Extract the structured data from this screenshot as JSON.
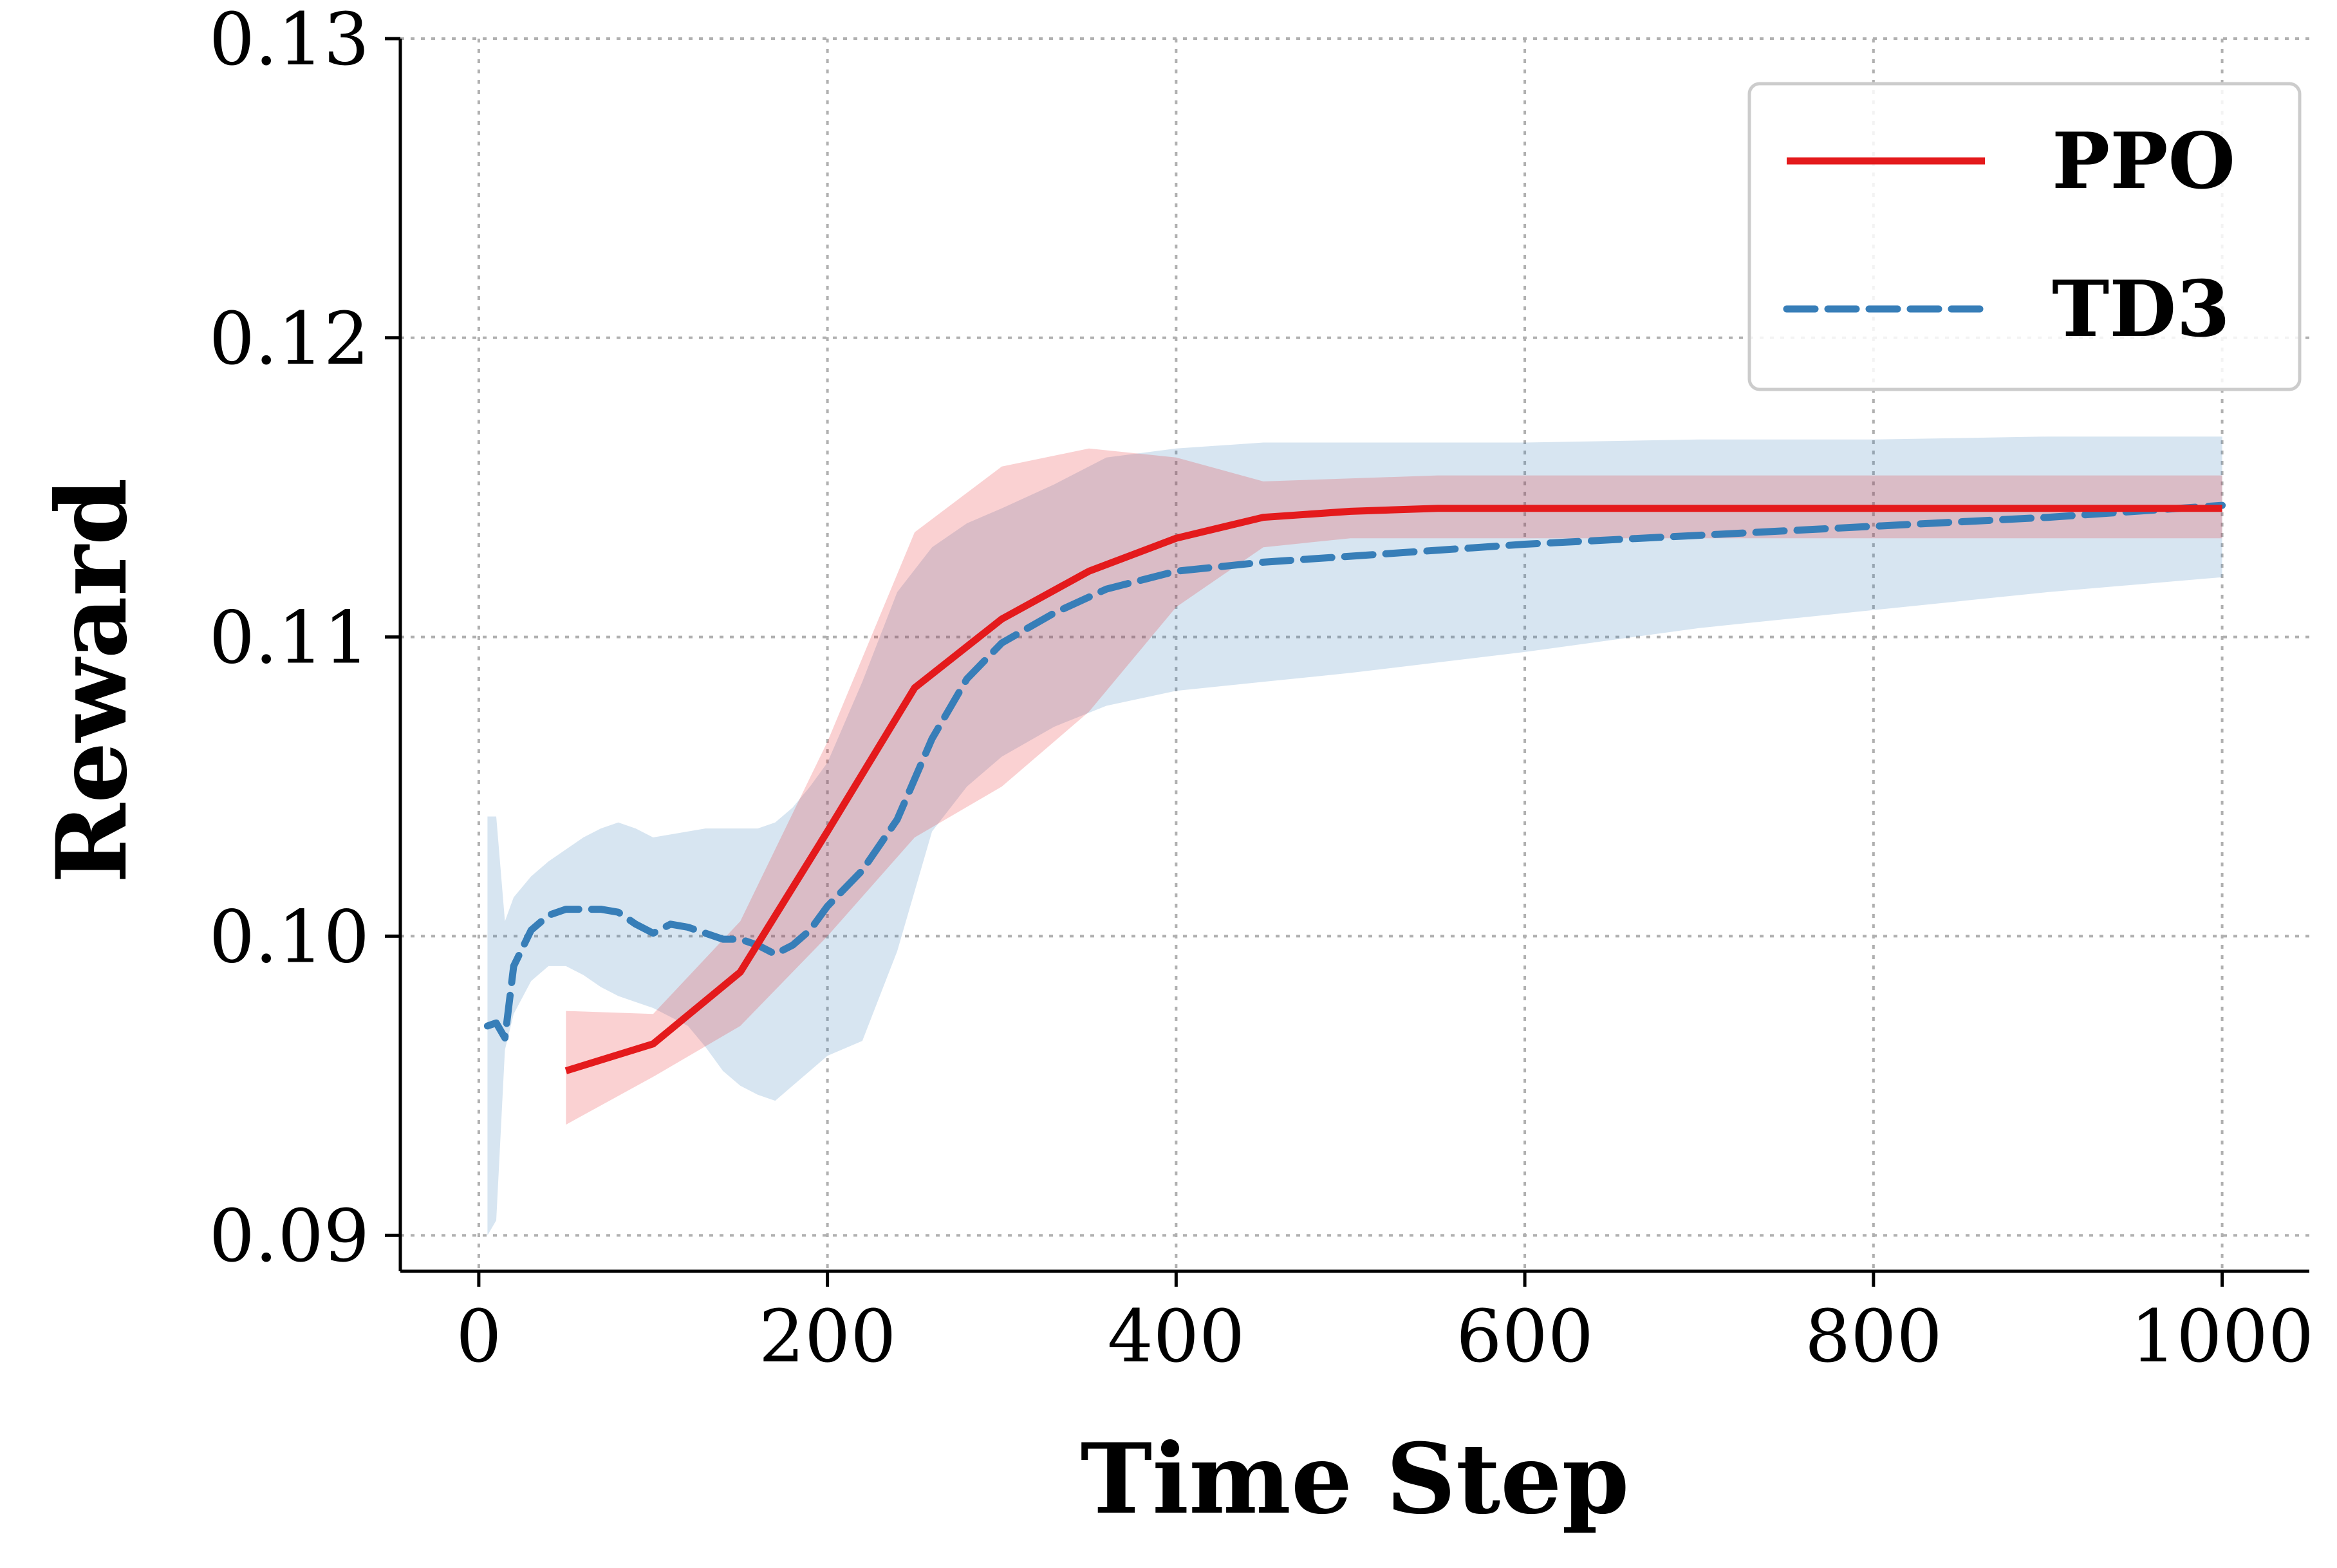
{
  "chart_data": {
    "type": "line",
    "title": "",
    "xlabel": "Time Step",
    "ylabel": "Reward",
    "xlim": [
      -45,
      1050
    ],
    "ylim": [
      0.0888,
      0.13
    ],
    "xticks": [
      0,
      200,
      400,
      600,
      800,
      1000
    ],
    "xtick_labels": [
      "0",
      "200",
      "400",
      "600",
      "800",
      "1000"
    ],
    "yticks": [
      0.09,
      0.1,
      0.11,
      0.12,
      0.13
    ],
    "ytick_labels": [
      "0.09",
      "0.10",
      "0.11",
      "0.12",
      "0.13"
    ],
    "grid": true,
    "legend_position": "top-right",
    "series": [
      {
        "name": "PPO",
        "color": "#e41a1c",
        "line_style": "solid",
        "x": [
          50,
          100,
          150,
          200,
          250,
          300,
          350,
          400,
          450,
          500,
          550,
          600,
          650,
          700,
          750,
          800,
          850,
          900,
          950,
          1000
        ],
        "y": [
          0.0955,
          0.0964,
          0.0988,
          0.1035,
          0.1083,
          0.1106,
          0.1122,
          0.1133,
          0.114,
          0.1142,
          0.1143,
          0.1143,
          0.1143,
          0.1143,
          0.1143,
          0.1143,
          0.1143,
          0.1143,
          0.1143,
          0.1143
        ],
        "upper": [
          0.0975,
          0.0974,
          0.1005,
          0.1065,
          0.1135,
          0.1157,
          0.1163,
          0.116,
          0.1152,
          0.1153,
          0.1154,
          0.1154,
          0.1154,
          0.1154,
          0.1154,
          0.1154,
          0.1154,
          0.1154,
          0.1154,
          0.1154
        ],
        "lower": [
          0.0937,
          0.0953,
          0.097,
          0.1,
          0.1033,
          0.105,
          0.1075,
          0.111,
          0.113,
          0.1133,
          0.1133,
          0.1133,
          0.1133,
          0.1133,
          0.1133,
          0.1133,
          0.1133,
          0.1133,
          0.1133,
          0.1133
        ]
      },
      {
        "name": "TD3",
        "color": "#377eb8",
        "line_style": "dashed",
        "x": [
          5,
          10,
          15,
          20,
          30,
          40,
          50,
          60,
          70,
          80,
          90,
          100,
          110,
          120,
          130,
          140,
          150,
          160,
          170,
          180,
          190,
          200,
          220,
          240,
          260,
          280,
          300,
          330,
          360,
          400,
          450,
          500,
          600,
          700,
          800,
          900,
          1000
        ],
        "y": [
          0.097,
          0.0971,
          0.0966,
          0.099,
          0.1002,
          0.1007,
          0.1009,
          0.1009,
          0.1009,
          0.1008,
          0.1004,
          0.1001,
          0.1004,
          0.1003,
          0.1001,
          0.0999,
          0.0999,
          0.0997,
          0.0994,
          0.0997,
          0.1002,
          0.101,
          0.1022,
          0.1039,
          0.1066,
          0.1086,
          0.1098,
          0.1108,
          0.1116,
          0.1122,
          0.1125,
          0.1127,
          0.1131,
          0.1134,
          0.1137,
          0.114,
          0.1144
        ],
        "upper": [
          0.104,
          0.104,
          0.1005,
          0.1013,
          0.102,
          0.1025,
          0.1029,
          0.1033,
          0.1036,
          0.1038,
          0.1036,
          0.1033,
          0.1034,
          0.1035,
          0.1036,
          0.1036,
          0.1036,
          0.1036,
          0.1038,
          0.1043,
          0.105,
          0.1058,
          0.1085,
          0.1115,
          0.113,
          0.1138,
          0.1143,
          0.1151,
          0.116,
          0.1163,
          0.1165,
          0.1165,
          0.1165,
          0.1166,
          0.1166,
          0.1167,
          0.1167
        ],
        "lower": [
          0.09,
          0.0905,
          0.0962,
          0.0974,
          0.0985,
          0.099,
          0.099,
          0.0987,
          0.0983,
          0.098,
          0.0978,
          0.0976,
          0.0973,
          0.097,
          0.0963,
          0.0955,
          0.095,
          0.0947,
          0.0945,
          0.095,
          0.0955,
          0.096,
          0.0965,
          0.0995,
          0.1035,
          0.105,
          0.106,
          0.107,
          0.1077,
          0.1082,
          0.1085,
          0.1088,
          0.1095,
          0.1103,
          0.1109,
          0.1115,
          0.112
        ]
      }
    ]
  }
}
